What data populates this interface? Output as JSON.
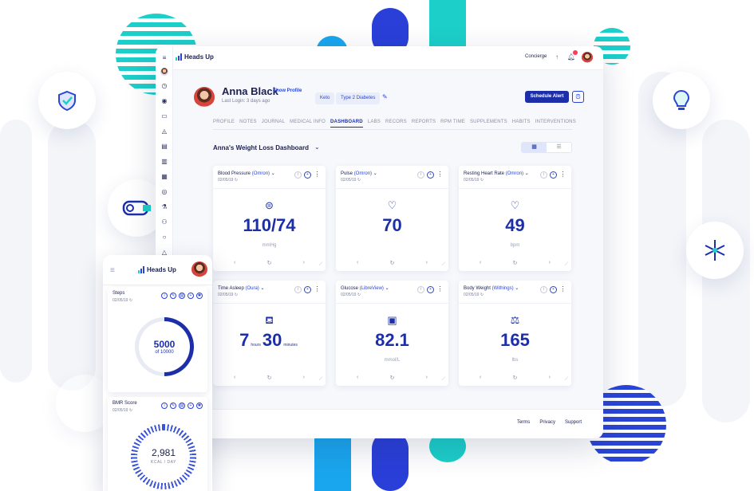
{
  "app": {
    "brand": "Heads Up",
    "accent": "#1c2fa8",
    "teal": "#1ccfc9"
  },
  "topbar": {
    "concierge": "Concierge",
    "upload_icon": "upload-icon",
    "bell_icon": "bell-icon"
  },
  "patient": {
    "name": "Anna Black",
    "show_profile": "Show Profile",
    "last_login": "Last Login: 3 days ago",
    "tags": [
      "Keto",
      "Type 2 Diabetes"
    ]
  },
  "actions": {
    "schedule_alert": "Schedule Alert"
  },
  "tabs": [
    {
      "label": "PROFILE",
      "active": false
    },
    {
      "label": "NOTES",
      "active": false
    },
    {
      "label": "JOURNAL",
      "active": false
    },
    {
      "label": "MEDICAL INFO",
      "active": false
    },
    {
      "label": "DASHBOARD",
      "active": true
    },
    {
      "label": "LABS",
      "active": false
    },
    {
      "label": "RECORS",
      "active": false
    },
    {
      "label": "REPORTS",
      "active": false
    },
    {
      "label": "RPM TIME",
      "active": false
    },
    {
      "label": "SUPPLEMENTS",
      "active": false
    },
    {
      "label": "HABITS",
      "active": false
    },
    {
      "label": "INTERVENTIONS",
      "active": false
    }
  ],
  "dashboard": {
    "title": "Anna's Weight Loss Dashboard"
  },
  "cards": [
    {
      "metric": "Blood Pressure",
      "source": "(Omron)",
      "date": "02/05/19",
      "value": "110/74",
      "unit": "mmHg",
      "icon": "blood-pressure-icon"
    },
    {
      "metric": "Pulse",
      "source": "(Omron)",
      "date": "02/05/19",
      "value": "70",
      "unit": "",
      "icon": "heart-pulse-icon"
    },
    {
      "metric": "Resting Heart Rate",
      "source": "(Omron)",
      "date": "02/05/19",
      "value": "49",
      "unit": "bpm",
      "icon": "heart-icon"
    },
    {
      "metric": "Time Asleep",
      "source": "(Oura)",
      "date": "02/05/19",
      "hours": "7",
      "hours_label": "hours",
      "minutes": "30",
      "minutes_label": "minutes",
      "icon": "bed-icon"
    },
    {
      "metric": "Glucose",
      "source": "(LibreView)",
      "date": "02/05/19",
      "value": "82.1",
      "unit": "mmol/L",
      "icon": "glucose-meter-icon"
    },
    {
      "metric": "Body Weight",
      "source": "(Withings)",
      "date": "02/05/19",
      "value": "165",
      "unit": "lbs",
      "icon": "scale-icon"
    }
  ],
  "footer": {
    "links": [
      "Terms",
      "Privacy",
      "Support"
    ]
  },
  "mobile": {
    "brand": "Heads Up",
    "steps": {
      "title": "Steps",
      "date": "02/05/19",
      "value": "5000",
      "of": "of 10000",
      "progress": 0.5
    },
    "bmr": {
      "title": "BMR Score",
      "date": "02/05/19",
      "value": "2,981",
      "unit": "KCAL / DAY"
    }
  }
}
